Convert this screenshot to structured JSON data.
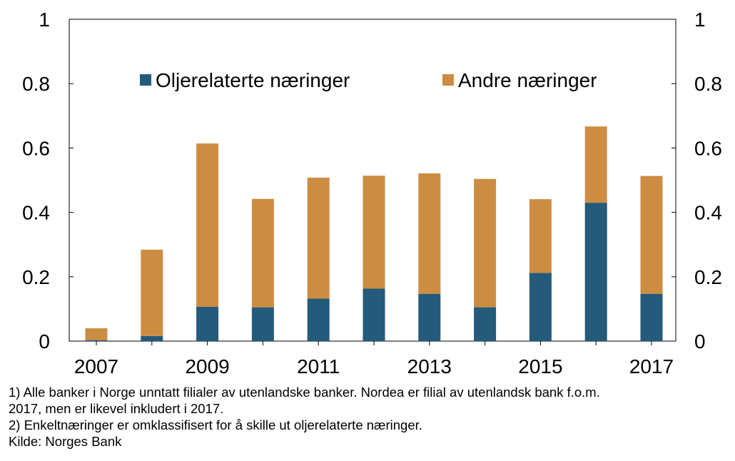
{
  "chart_data": {
    "type": "bar",
    "stacked": true,
    "categories": [
      "2007",
      "2008",
      "2009",
      "2010",
      "2011",
      "2012",
      "2013",
      "2014",
      "2015",
      "2016",
      "2017"
    ],
    "x_tick_labels": [
      "2007",
      "2009",
      "2011",
      "2013",
      "2015",
      "2017"
    ],
    "y_tick_labels_left": [
      "0",
      "0.2",
      "0.4",
      "0.6",
      "0.8",
      "1"
    ],
    "y_tick_labels_right": [
      "0",
      "0.2",
      "0.4",
      "0.6",
      "0.8",
      "1"
    ],
    "y_ticks": [
      0,
      0.2,
      0.4,
      0.6,
      0.8,
      1
    ],
    "ylim": [
      0,
      1
    ],
    "grid": false,
    "legend_position": "top",
    "series": [
      {
        "name": "Oljerelaterte næringer",
        "color": "#245A7A",
        "values": [
          0.003,
          0.016,
          0.107,
          0.105,
          0.132,
          0.163,
          0.147,
          0.105,
          0.212,
          0.43,
          0.147
        ]
      },
      {
        "name": "Andre næringer",
        "color": "#CC8D43",
        "values": [
          0.037,
          0.268,
          0.507,
          0.337,
          0.376,
          0.351,
          0.374,
          0.399,
          0.229,
          0.237,
          0.366
        ]
      }
    ]
  },
  "footnotes": [
    "1) Alle banker i Norge unntatt filialer av utenlandske banker. Nordea er filial av utenlandsk bank f.o.m.",
    "2017, men er likevel inkludert i 2017.",
    "2) Enkeltnæringer er omklassifisert for å skille ut oljerelaterte næringer.",
    "Kilde: Norges Bank"
  ]
}
